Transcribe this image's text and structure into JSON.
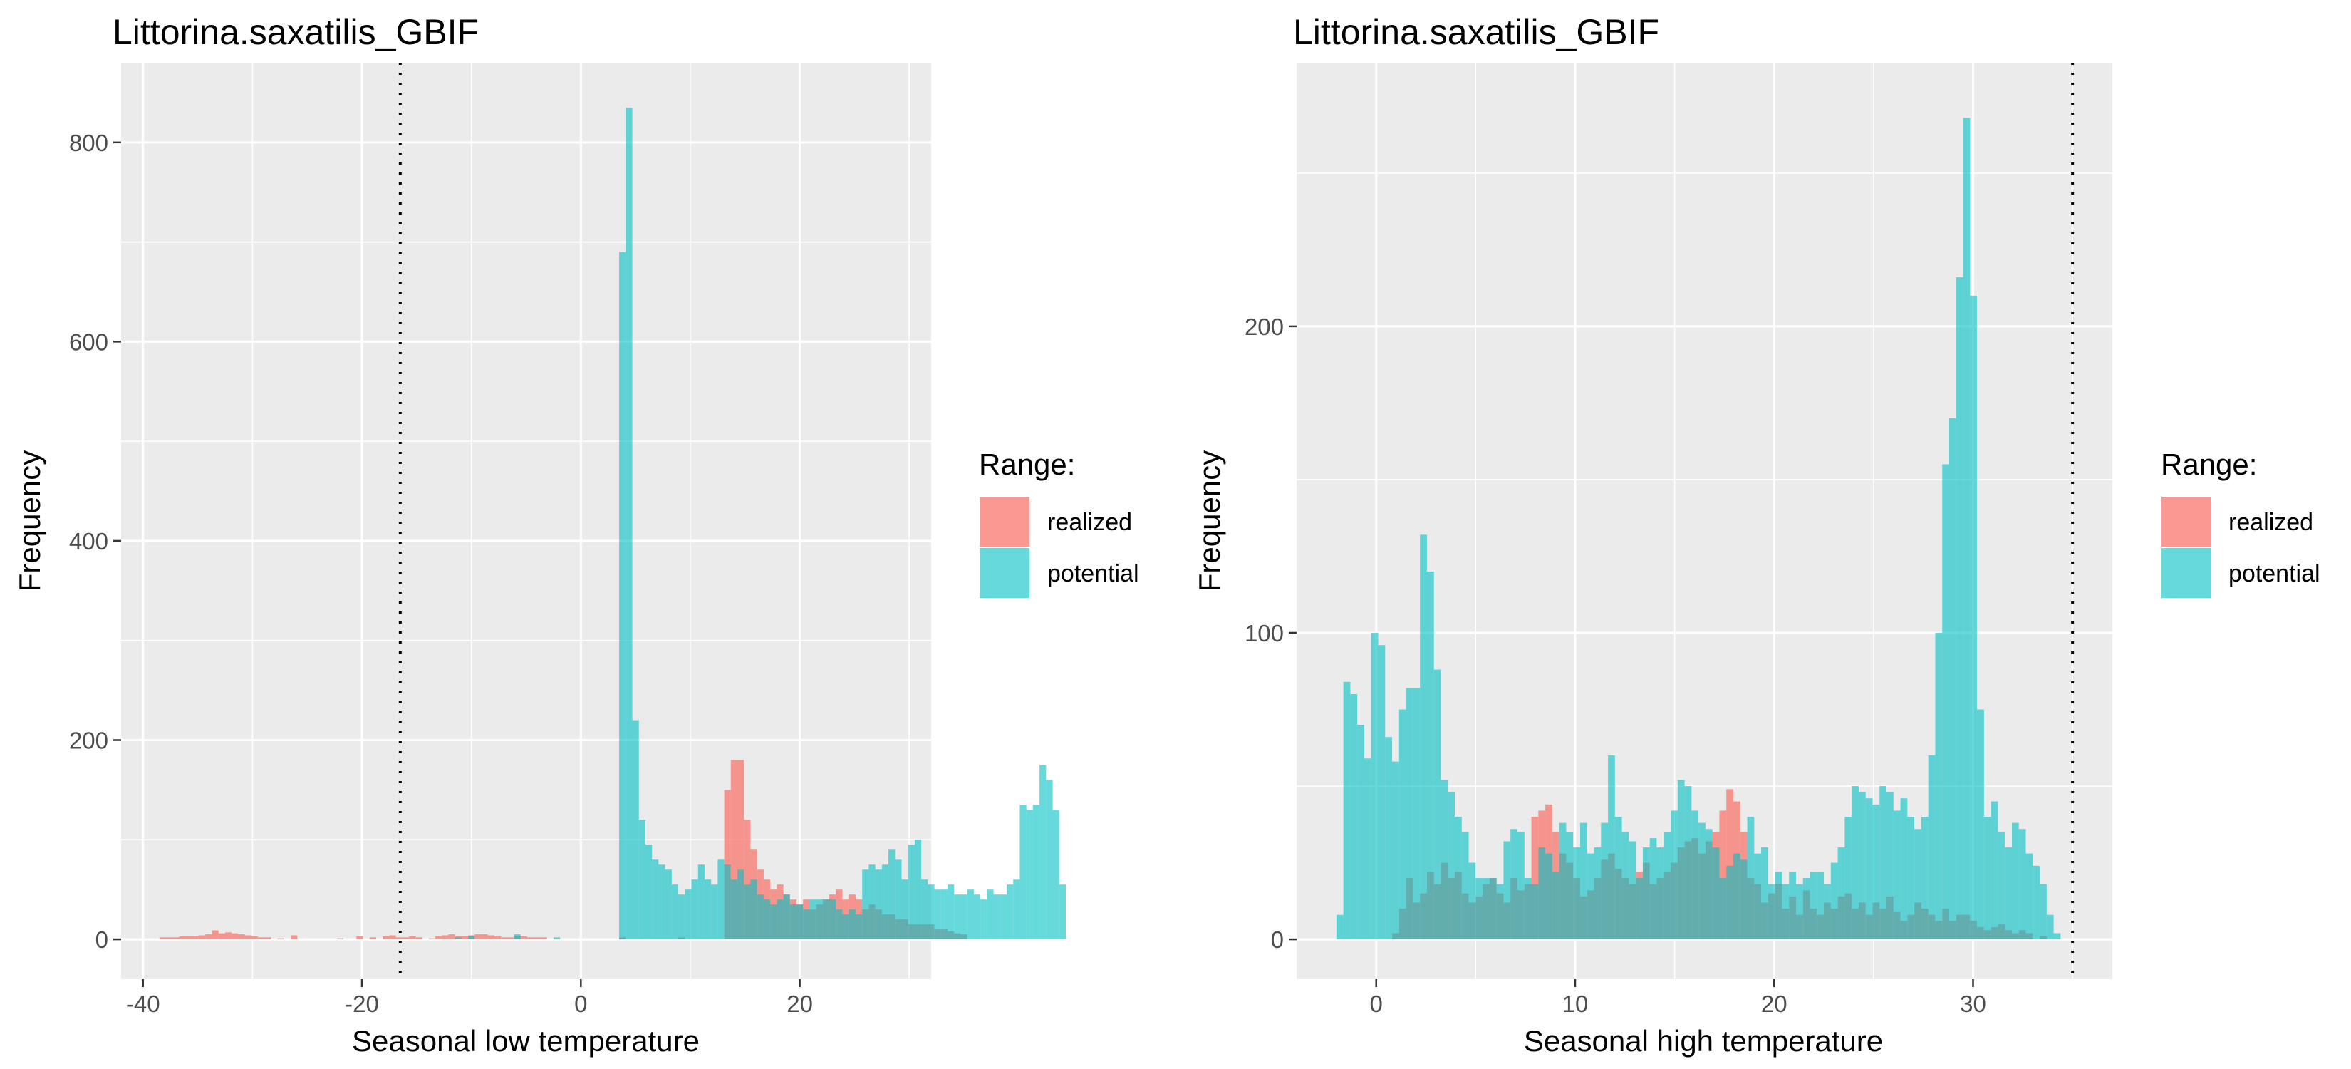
{
  "chart_data": [
    {
      "type": "histogram",
      "title": "Littorina.saxatilis_GBIF",
      "xlabel": "Seasonal low temperature",
      "ylabel": "Frequency",
      "xlim": [
        -42,
        32
      ],
      "ylim": [
        -40,
        880
      ],
      "xticks": [
        -40,
        -20,
        0,
        20
      ],
      "yticks": [
        0,
        200,
        400,
        600,
        800
      ],
      "vline": -16.5,
      "bin_width": 0.6,
      "grid": true,
      "legend": {
        "title": "Range:",
        "position": "right",
        "entries": [
          "realized",
          "potential"
        ]
      },
      "series": [
        {
          "name": "realized",
          "color": "#F8766D",
          "start": -38.5,
          "values": [
            2,
            2,
            2,
            3,
            3,
            3,
            4,
            5,
            9,
            6,
            7,
            6,
            5,
            4,
            3,
            2,
            2,
            0,
            1,
            0,
            4,
            0,
            0,
            0,
            0,
            0,
            0,
            1,
            0,
            0,
            3,
            0,
            2,
            0,
            3,
            4,
            2,
            2,
            3,
            2,
            0,
            1,
            3,
            4,
            5,
            3,
            3,
            4,
            5,
            5,
            4,
            3,
            2,
            2,
            3,
            3,
            2,
            2,
            2,
            0,
            0,
            0,
            0,
            0,
            0,
            0,
            0,
            0,
            0,
            0,
            2,
            0,
            0,
            0,
            0,
            0,
            0,
            0,
            0,
            2,
            0,
            0,
            0,
            0,
            0,
            0,
            150,
            180,
            180,
            120,
            90,
            70,
            60,
            50,
            55,
            45,
            40,
            35,
            40,
            30,
            35,
            40,
            45,
            50,
            40,
            45,
            40,
            30,
            35,
            30,
            25,
            25,
            20,
            20,
            15,
            15,
            15,
            15,
            10,
            10,
            8,
            6,
            5
          ]
        },
        {
          "name": "potential",
          "color": "#00BFC4",
          "start": -12.1,
          "values": [
            0,
            2,
            0,
            3,
            0,
            0,
            0,
            0,
            0,
            0,
            5,
            0,
            0,
            0,
            0,
            0,
            2,
            0,
            0,
            0,
            0,
            0,
            0,
            0,
            0,
            0,
            690,
            835,
            220,
            120,
            95,
            80,
            75,
            70,
            55,
            45,
            50,
            60,
            75,
            60,
            55,
            80,
            75,
            60,
            70,
            55,
            60,
            45,
            40,
            35,
            40,
            45,
            35,
            35,
            30,
            40,
            40,
            40,
            40,
            30,
            25,
            30,
            25,
            70,
            75,
            70,
            75,
            90,
            80,
            60,
            95,
            100,
            60,
            55,
            50,
            50,
            55,
            45,
            45,
            50,
            45,
            40,
            50,
            45,
            45,
            55,
            60,
            135,
            130,
            135,
            175,
            160,
            130,
            55
          ]
        }
      ]
    },
    {
      "type": "histogram",
      "title": "Littorina.saxatilis_GBIF",
      "xlabel": "Seasonal high temperature",
      "ylabel": "Frequency",
      "xlim": [
        -4,
        37
      ],
      "ylim": [
        -13,
        286
      ],
      "xticks": [
        0,
        10,
        20,
        30
      ],
      "yticks": [
        0,
        100,
        200
      ],
      "vline": 35,
      "bin_width": 0.35,
      "grid": true,
      "legend": {
        "title": "Range:",
        "position": "right",
        "entries": [
          "realized",
          "potential"
        ]
      },
      "series": [
        {
          "name": "realized",
          "color": "#F8766D",
          "start": 0.8,
          "values": [
            2,
            10,
            20,
            12,
            15,
            22,
            18,
            25,
            20,
            22,
            15,
            12,
            14,
            18,
            20,
            15,
            12,
            20,
            16,
            18,
            40,
            42,
            44,
            35,
            28,
            25,
            20,
            14,
            16,
            20,
            26,
            28,
            23,
            20,
            18,
            22,
            25,
            18,
            20,
            22,
            25,
            30,
            32,
            33,
            28,
            32,
            35,
            42,
            49,
            45,
            35,
            20,
            18,
            12,
            15,
            18,
            10,
            14,
            8,
            16,
            10,
            8,
            12,
            10,
            14,
            15,
            10,
            12,
            8,
            12,
            10,
            14,
            9,
            6,
            8,
            12,
            10,
            8,
            6,
            10,
            6,
            8,
            8,
            6,
            4,
            3,
            4,
            5,
            3,
            2,
            3,
            2,
            0,
            1
          ]
        },
        {
          "name": "potential",
          "color": "#00BFC4",
          "start": -2.0,
          "values": [
            8,
            84,
            80,
            70,
            59,
            100,
            96,
            66,
            58,
            75,
            82,
            82,
            132,
            120,
            88,
            52,
            48,
            40,
            35,
            25,
            20,
            20,
            20,
            18,
            32,
            36,
            35,
            20,
            18,
            30,
            28,
            22,
            38,
            35,
            30,
            38,
            28,
            30,
            38,
            60,
            40,
            35,
            32,
            20,
            30,
            33,
            30,
            35,
            42,
            52,
            50,
            42,
            38,
            36,
            30,
            20,
            24,
            28,
            26,
            40,
            28,
            30,
            18,
            22,
            18,
            22,
            18,
            20,
            22,
            22,
            18,
            25,
            30,
            40,
            50,
            48,
            46,
            44,
            50,
            48,
            42,
            46,
            40,
            36,
            40,
            60,
            100,
            155,
            170,
            216,
            268,
            210,
            75,
            40,
            45,
            35,
            30,
            38,
            36,
            28,
            24,
            18,
            8,
            2
          ]
        }
      ]
    }
  ]
}
